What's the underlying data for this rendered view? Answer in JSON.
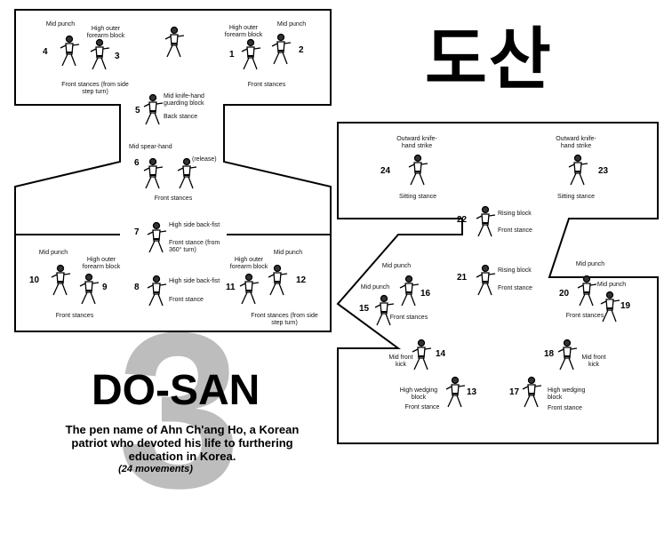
{
  "title": "DO-SAN",
  "korean_title": "도산",
  "pattern_number": "3",
  "description": "The pen name of Ahn Ch'ang Ho, a Korean patriot who devoted his life to furthering education in Korea.",
  "movement_count": "(24 movements)",
  "movements": [
    {
      "num": "1",
      "technique": "High outer forearm block",
      "stance": ""
    },
    {
      "num": "2",
      "technique": "Mid punch",
      "stance": ""
    },
    {
      "num": "3",
      "technique": "High outer forearm block",
      "stance": ""
    },
    {
      "num": "4",
      "technique": "Mid punch",
      "stance": ""
    },
    {
      "num": "5",
      "technique": "Mid knife-hand guarding block",
      "stance": "Back stance"
    },
    {
      "num": "6",
      "technique": "Mid spear-hand",
      "stance": "Front stances",
      "note": "(release)"
    },
    {
      "num": "7",
      "technique": "High side back-fist",
      "stance": "Front stance (from 360° turn)"
    },
    {
      "num": "8",
      "technique": "High side back-fist",
      "stance": "Front stance"
    },
    {
      "num": "9",
      "technique": "High outer forearm block",
      "stance": ""
    },
    {
      "num": "10",
      "technique": "Mid punch",
      "stance": ""
    },
    {
      "num": "11",
      "technique": "High outer forearm block",
      "stance": ""
    },
    {
      "num": "12",
      "technique": "Mid punch",
      "stance": ""
    },
    {
      "num": "13",
      "technique": "High wedging block",
      "stance": "Front stance"
    },
    {
      "num": "14",
      "technique": "Mid front kick",
      "stance": ""
    },
    {
      "num": "15",
      "technique": "Mid punch",
      "stance": ""
    },
    {
      "num": "16",
      "technique": "Mid punch",
      "stance": "Front stances"
    },
    {
      "num": "17",
      "technique": "High wedging block",
      "stance": "Front stance"
    },
    {
      "num": "18",
      "technique": "Mid front kick",
      "stance": ""
    },
    {
      "num": "19",
      "technique": "Mid punch",
      "stance": ""
    },
    {
      "num": "20",
      "technique": "Mid punch",
      "stance": "Front stances"
    },
    {
      "num": "21",
      "technique": "Rising block",
      "stance": "Front stance"
    },
    {
      "num": "22",
      "technique": "Rising block",
      "stance": "Front stance"
    },
    {
      "num": "23",
      "technique": "Outward knife-hand strike",
      "stance": "Sitting stance"
    },
    {
      "num": "24",
      "technique": "Outward knife-hand strike",
      "stance": "Sitting stance"
    }
  ],
  "group_labels": {
    "front_stances_side_step": "Front stances (from side step turn)",
    "front_stances": "Front stances",
    "front_stances_side_step_2": "Front stances (from side step turn)"
  }
}
